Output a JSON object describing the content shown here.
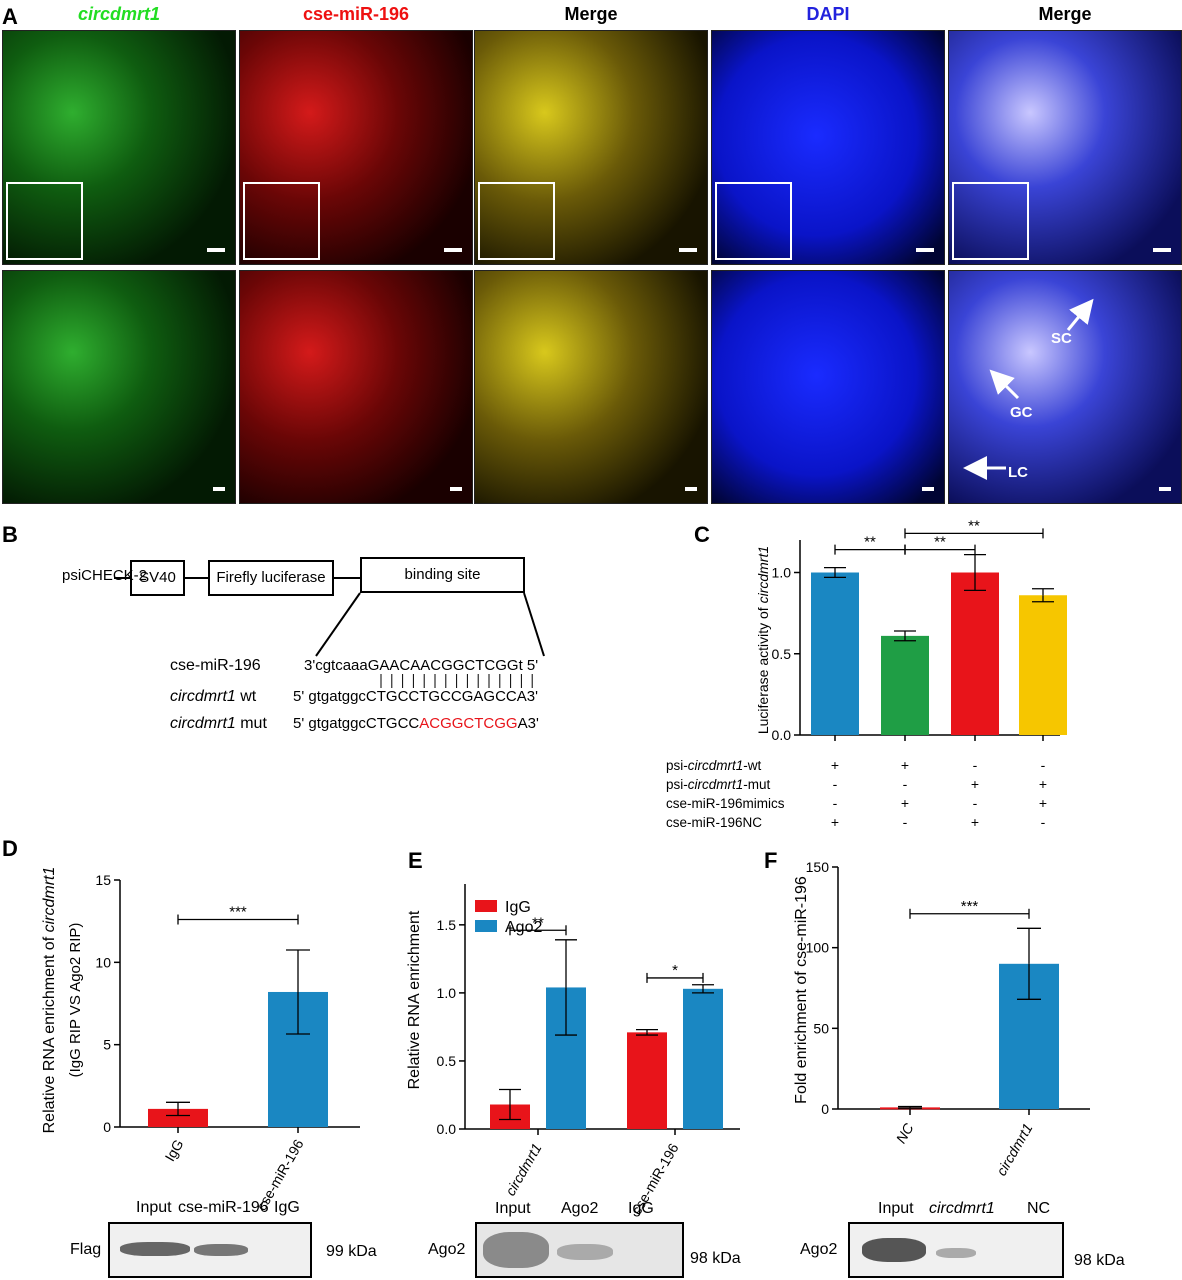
{
  "panels": {
    "A": "A",
    "B": "B",
    "C": "C",
    "D": "D",
    "E": "E",
    "F": "F"
  },
  "micrograph": {
    "columns": [
      {
        "title": "circdmrt1",
        "color": "#22dd22",
        "italic": true
      },
      {
        "title": "cse-miR-196",
        "color": "#ee1111",
        "italic": false
      },
      {
        "title": "Merge",
        "color": "#000000",
        "italic": false
      },
      {
        "title": "DAPI",
        "color": "#2222dd",
        "italic": false
      },
      {
        "title": "Merge",
        "color": "#000000",
        "italic": false
      }
    ],
    "annotations": {
      "sc": "SC",
      "gc": "GC",
      "lc": "LC"
    }
  },
  "construct": {
    "vector": "psiCHECK-2",
    "sv40": "SV40",
    "firefly": "Firefly luciferase",
    "binding": "binding site",
    "mirna_label": "cse-miR-196",
    "mirna_seq_a": "3'cgtcaaaGAACAACGGCTCGGt",
    "mirna_seq_b": " 5'",
    "wt_label_it": "circdmrt1",
    "wt_label": " wt",
    "wt_seq": "5' gtgatggcCTGCCTGCCGAGCCA3'",
    "mut_label_it": "circdmrt1",
    "mut_label": " mut",
    "mut_seq_a": "5' gtgatggcCTGCC",
    "mut_seq_red": "ACGGCTCGG",
    "mut_seq_b": "A3'"
  },
  "chart_data": [
    {
      "panel": "C",
      "type": "bar",
      "ylabel_a": "Luciferase activity of ",
      "ylabel_it": "circdmrt1",
      "ylim": [
        0,
        1.2
      ],
      "yticks": [
        "0.0",
        "0.5",
        "1.0"
      ],
      "values": [
        1.0,
        0.61,
        1.0,
        0.86
      ],
      "errors": [
        0.03,
        0.03,
        0.11,
        0.04
      ],
      "colors": [
        "#1a87c2",
        "#1f9e45",
        "#e8141a",
        "#f6c600"
      ],
      "significance": [
        {
          "from": 0,
          "to": 1,
          "label": "**"
        },
        {
          "from": 1,
          "to": 2,
          "label": "**"
        },
        {
          "from": 1,
          "to": 3,
          "label": "**"
        }
      ],
      "conditions": [
        {
          "name_a": "psi-",
          "name_it": "circdmrt1",
          "name_b": "-wt",
          "marks": [
            "+",
            "+",
            "-",
            "-"
          ]
        },
        {
          "name_a": "psi-",
          "name_it": "circdmrt1",
          "name_b": "-mut",
          "marks": [
            "-",
            "-",
            "+",
            "+"
          ]
        },
        {
          "name_a": "cse-miR-196mimics",
          "name_it": "",
          "name_b": "",
          "marks": [
            "-",
            "+",
            "-",
            "+"
          ]
        },
        {
          "name_a": "cse-miR-196NC",
          "name_it": "",
          "name_b": "",
          "marks": [
            "+",
            "-",
            "+",
            "-"
          ]
        }
      ]
    },
    {
      "panel": "D",
      "type": "bar",
      "ylabel1_a": "Relative RNA enrichment of ",
      "ylabel1_it": "circdmrt1",
      "ylabel2": "(IgG RIP VS Ago2 RIP)",
      "categories": [
        "IgG",
        "cse-miR-196"
      ],
      "values": [
        1.1,
        8.2
      ],
      "errors": [
        0.4,
        2.55
      ],
      "colors": [
        "#e8141a",
        "#1a87c2"
      ],
      "ylim": [
        0,
        15
      ],
      "yticks": [
        "0",
        "5",
        "10",
        "15"
      ],
      "significance": [
        {
          "from": 0,
          "to": 1,
          "label": "***"
        }
      ]
    },
    {
      "panel": "E",
      "type": "bar",
      "ylabel": "Relative RNA enrichment",
      "categories": [
        "circdmrt1",
        "cse-miR-196"
      ],
      "series": [
        {
          "name": "IgG",
          "values": [
            0.18,
            0.71
          ],
          "errors": [
            0.11,
            0.02
          ],
          "color": "#e8141a"
        },
        {
          "name": "Ago2",
          "values": [
            1.04,
            1.03
          ],
          "errors": [
            0.35,
            0.03
          ],
          "color": "#1a87c2"
        }
      ],
      "ylim": [
        0,
        1.8
      ],
      "yticks": [
        "0.0",
        "0.5",
        "1.0",
        "1.5"
      ],
      "significance": [
        {
          "group": 0,
          "label": "**"
        },
        {
          "group": 1,
          "label": "*"
        }
      ]
    },
    {
      "panel": "F",
      "type": "bar",
      "ylabel": "Fold enrichment of cse-miR-196",
      "categories": [
        "NC",
        "circdmrt1"
      ],
      "values": [
        1,
        90
      ],
      "errors": [
        0.5,
        22
      ],
      "colors": [
        "#e8141a",
        "#1a87c2"
      ],
      "ylim": [
        0,
        150
      ],
      "yticks": [
        "0",
        "50",
        "100",
        "150"
      ],
      "significance": [
        {
          "from": 0,
          "to": 1,
          "label": "***"
        }
      ]
    }
  ],
  "blots": {
    "D": {
      "lanes": [
        "Input",
        "cse-miR-196",
        "IgG"
      ],
      "row": "Flag",
      "size": "99 kDa"
    },
    "E": {
      "lanes": [
        "Input",
        "Ago2",
        "IgG"
      ],
      "row": "Ago2",
      "size": "98 kDa"
    },
    "F": {
      "lanes": [
        "Input",
        "circdmrt1",
        "NC"
      ],
      "row": "Ago2",
      "size": "98 kDa"
    }
  }
}
